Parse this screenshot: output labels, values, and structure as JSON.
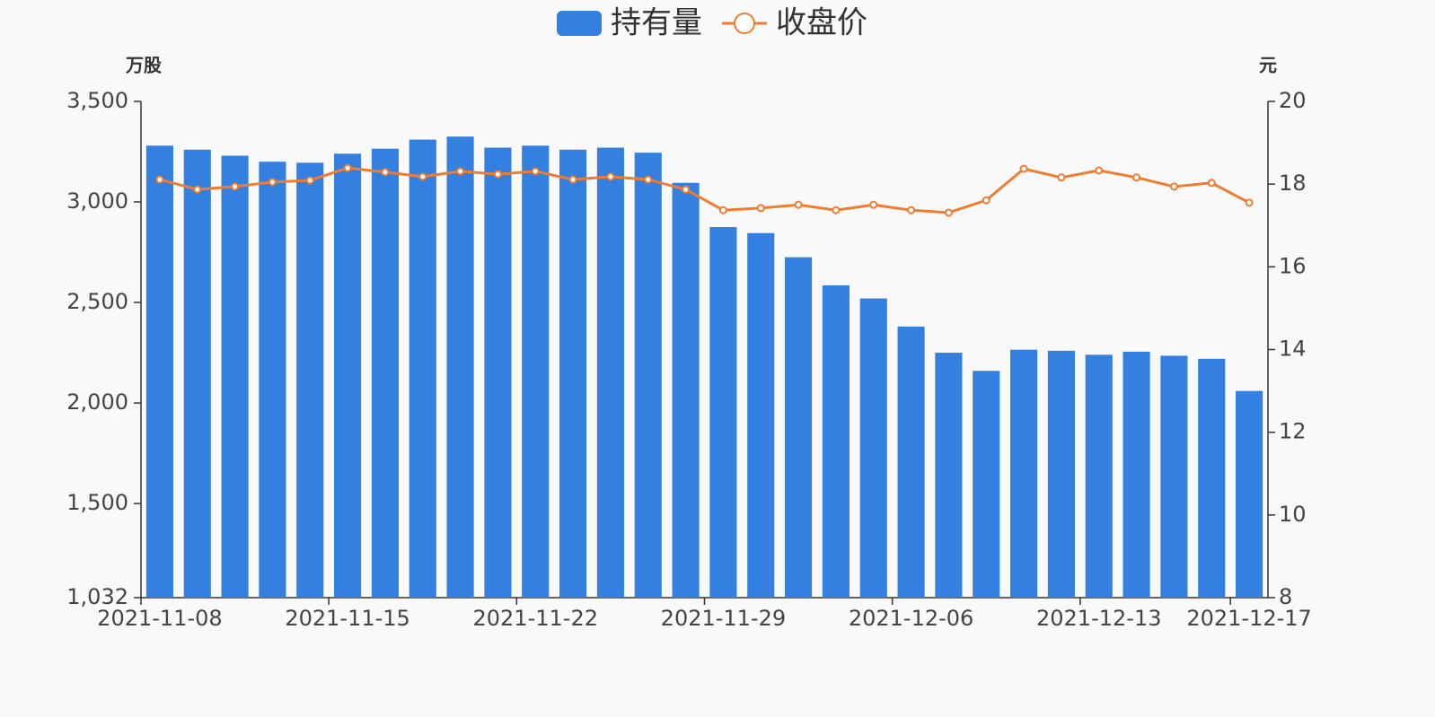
{
  "chart_data": {
    "type": "bar-line",
    "legend_position": "top",
    "y_label": "万股",
    "y2_label": "元",
    "categories": [
      "2021-11-08",
      null,
      null,
      null,
      null,
      "2021-11-15",
      null,
      null,
      null,
      null,
      "2021-11-22",
      null,
      null,
      null,
      null,
      "2021-11-29",
      null,
      null,
      null,
      null,
      "2021-12-06",
      null,
      null,
      null,
      null,
      "2021-12-13",
      null,
      null,
      null,
      "2021-12-17"
    ],
    "series": [
      {
        "name": "持有量",
        "type": "bar",
        "color": "#3480e0",
        "values": [
          3280,
          3260,
          3230,
          3200,
          3195,
          3240,
          3265,
          3310,
          3325,
          3270,
          3280,
          3260,
          3270,
          3245,
          3095,
          2875,
          2845,
          2725,
          2585,
          2520,
          2380,
          2250,
          2160,
          2265,
          2260,
          2240,
          2255,
          2235,
          2220,
          2060
        ]
      },
      {
        "name": "收盘价",
        "type": "line",
        "axis": "y2",
        "color": "#ee7d31",
        "values": [
          18.11,
          17.87,
          17.94,
          18.05,
          18.09,
          18.39,
          18.29,
          18.18,
          18.31,
          18.24,
          18.31,
          18.11,
          18.18,
          18.11,
          17.87,
          17.37,
          17.42,
          17.5,
          17.37,
          17.5,
          17.37,
          17.31,
          17.61,
          18.37,
          18.16,
          18.33,
          18.16,
          17.94,
          18.03,
          17.55
        ]
      }
    ],
    "ylim": [
      1032,
      3500
    ],
    "yticks": [
      {
        "value": 1032,
        "label": "1,032"
      },
      {
        "value": 1500,
        "label": "1,500"
      },
      {
        "value": 2000,
        "label": "2,000"
      },
      {
        "value": 2500,
        "label": "2,500"
      },
      {
        "value": 3000,
        "label": "3,000"
      },
      {
        "value": 3500,
        "label": "3,500"
      }
    ],
    "y2lim": [
      8,
      20
    ],
    "y2ticks": [
      8,
      10,
      12,
      14,
      16,
      18,
      20
    ]
  }
}
